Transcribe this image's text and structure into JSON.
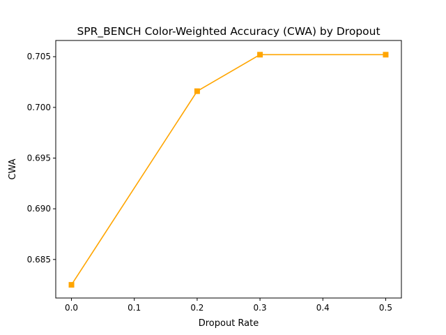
{
  "chart_data": {
    "type": "line",
    "title": "SPR_BENCH Color-Weighted Accuracy (CWA) by Dropout",
    "xlabel": "Dropout Rate",
    "ylabel": "CWA",
    "xlim": [
      -0.025,
      0.525
    ],
    "ylim": [
      0.6812,
      0.7066
    ],
    "xticks": [
      0.0,
      0.1,
      0.2,
      0.3,
      0.4,
      0.5
    ],
    "xtick_labels": [
      "0.0",
      "0.1",
      "0.2",
      "0.3",
      "0.4",
      "0.5"
    ],
    "yticks": [
      0.685,
      0.69,
      0.695,
      0.7,
      0.705
    ],
    "ytick_labels": [
      "0.685",
      "0.690",
      "0.695",
      "0.700",
      "0.705"
    ],
    "grid": false,
    "series": [
      {
        "color": "#ffa500",
        "marker": "square",
        "x": [
          0.0,
          0.2,
          0.3,
          0.5
        ],
        "y": [
          0.6825,
          0.7016,
          0.7052,
          0.7052
        ]
      }
    ]
  }
}
